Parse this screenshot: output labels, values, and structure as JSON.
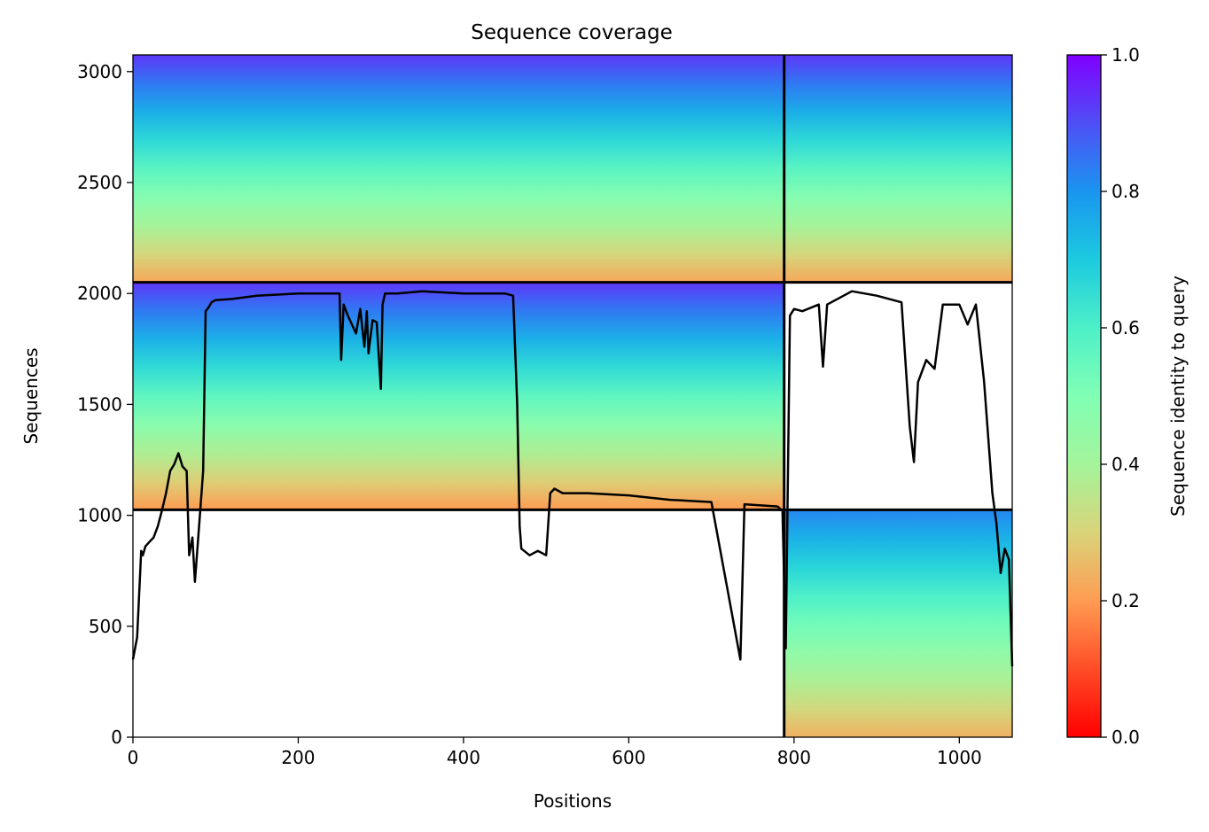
{
  "chart_data": {
    "type": "heatmap",
    "title": "Sequence coverage",
    "xlabel": "Positions",
    "ylabel": "Sequences",
    "colorbar_label": "Sequence identity to query",
    "colormap": "rainbow_r",
    "xlim": [
      0,
      1064
    ],
    "ylim": [
      0,
      3075
    ],
    "x_ticks": [
      0,
      200,
      400,
      600,
      800,
      1000
    ],
    "y_ticks": [
      0,
      500,
      1000,
      1500,
      2000,
      2500,
      3000
    ],
    "colorbar_ticks": [
      0.0,
      0.2,
      0.4,
      0.6,
      0.8,
      1.0
    ],
    "colorbar_tick_labels": [
      "0.0",
      "0.2",
      "0.4",
      "0.6",
      "0.8",
      "1.0"
    ],
    "chain_boundaries": {
      "positions": [
        788
      ],
      "sequence_counts": [
        1025,
        2050
      ]
    },
    "coverage_blocks": [
      {
        "rows": [
          2050,
          3075
        ],
        "cols": [
          0,
          788
        ],
        "identity_range": [
          0.22,
          0.93
        ]
      },
      {
        "rows": [
          2050,
          3075
        ],
        "cols": [
          788,
          1064
        ],
        "identity_range": [
          0.22,
          0.93
        ]
      },
      {
        "rows": [
          1025,
          2050
        ],
        "cols": [
          0,
          788
        ],
        "identity_range": [
          0.2,
          0.93
        ]
      },
      {
        "rows": [
          0,
          1025
        ],
        "cols": [
          788,
          1064
        ],
        "identity_range": [
          0.24,
          0.82
        ]
      }
    ],
    "coverage_line": {
      "x": [
        0,
        5,
        10,
        12,
        15,
        20,
        25,
        30,
        35,
        40,
        45,
        50,
        55,
        60,
        65,
        68,
        72,
        75,
        80,
        85,
        88,
        92,
        95,
        100,
        120,
        150,
        200,
        250,
        252,
        255,
        260,
        270,
        275,
        280,
        283,
        285,
        290,
        295,
        300,
        302,
        305,
        320,
        350,
        400,
        450,
        460,
        465,
        468,
        470,
        480,
        490,
        500,
        505,
        510,
        520,
        550,
        600,
        650,
        700,
        735,
        740,
        780,
        786,
        790,
        795,
        800,
        810,
        830,
        835,
        840,
        870,
        900,
        930,
        940,
        945,
        950,
        960,
        970,
        980,
        1000,
        1010,
        1020,
        1030,
        1040,
        1045,
        1050,
        1055,
        1060,
        1064
      ],
      "y": [
        350,
        450,
        840,
        820,
        860,
        880,
        900,
        950,
        1020,
        1100,
        1200,
        1230,
        1280,
        1220,
        1200,
        820,
        900,
        700,
        950,
        1200,
        1920,
        1940,
        1960,
        1970,
        1975,
        1990,
        2000,
        2000,
        1700,
        1950,
        1900,
        1820,
        1930,
        1760,
        1920,
        1730,
        1880,
        1870,
        1570,
        1950,
        2000,
        2000,
        2010,
        2000,
        2000,
        1990,
        1500,
        950,
        850,
        820,
        840,
        820,
        1100,
        1120,
        1100,
        1100,
        1090,
        1070,
        1060,
        350,
        1050,
        1040,
        1020,
        400,
        1900,
        1930,
        1920,
        1950,
        1670,
        1950,
        2010,
        1990,
        1960,
        1400,
        1240,
        1600,
        1700,
        1660,
        1950,
        1950,
        1860,
        1950,
        1600,
        1100,
        960,
        740,
        850,
        800,
        320
      ]
    }
  }
}
